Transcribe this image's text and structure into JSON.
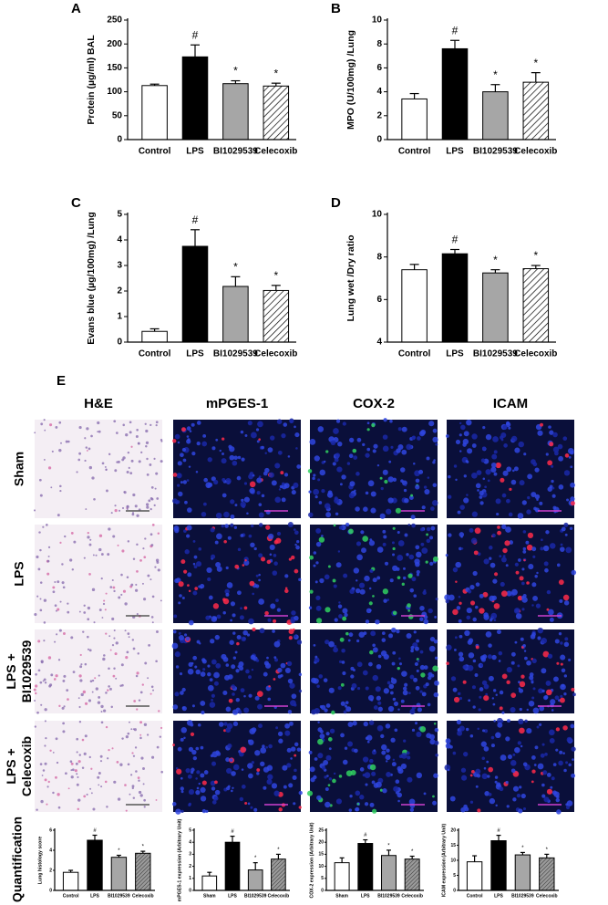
{
  "chart_data": [
    {
      "type": "bar",
      "panel": "A",
      "ylabel": "Protein (µg/ml) BAL",
      "categories": [
        "Control",
        "LPS",
        "BI1029539",
        "Celecoxib"
      ],
      "values": [
        113,
        173,
        117,
        112
      ],
      "errors": [
        3,
        25,
        6,
        6
      ],
      "annotations": [
        null,
        "#",
        "*",
        "*"
      ],
      "colors": [
        "#ffffff",
        "#000000",
        "#a6a6a6",
        "#ffffff"
      ],
      "hatched": [
        false,
        false,
        false,
        true
      ],
      "ylim": [
        0,
        250
      ],
      "yticks": [
        0,
        50,
        100,
        150,
        200,
        250
      ]
    },
    {
      "type": "bar",
      "panel": "B",
      "ylabel": "MPO (U/100mg) /Lung",
      "categories": [
        "Control",
        "LPS",
        "BI1029539",
        "Celecoxib"
      ],
      "values": [
        3.4,
        7.6,
        4.0,
        4.8
      ],
      "errors": [
        0.45,
        0.7,
        0.6,
        0.8
      ],
      "annotations": [
        null,
        "#",
        "*",
        "*"
      ],
      "colors": [
        "#ffffff",
        "#000000",
        "#a6a6a6",
        "#ffffff"
      ],
      "hatched": [
        false,
        false,
        false,
        true
      ],
      "ylim": [
        0,
        10
      ],
      "yticks": [
        0,
        2,
        4,
        6,
        8,
        10
      ]
    },
    {
      "type": "bar",
      "panel": "C",
      "ylabel": "Evans blue (µg/100mg) /Lung",
      "categories": [
        "Control",
        "LPS",
        "BI1029539",
        "Celecoxib"
      ],
      "values": [
        0.42,
        3.75,
        2.18,
        2.02
      ],
      "errors": [
        0.1,
        0.65,
        0.38,
        0.2
      ],
      "annotations": [
        null,
        "#",
        "*",
        "*"
      ],
      "colors": [
        "#ffffff",
        "#000000",
        "#a6a6a6",
        "#ffffff"
      ],
      "hatched": [
        false,
        false,
        false,
        true
      ],
      "ylim": [
        0,
        5
      ],
      "yticks": [
        0,
        1,
        2,
        3,
        4,
        5
      ]
    },
    {
      "type": "bar",
      "panel": "D",
      "ylabel": "Lung wet /Dry ratio",
      "categories": [
        "Control",
        "LPS",
        "BI1029539",
        "Celecoxib"
      ],
      "values": [
        7.4,
        8.15,
        7.25,
        7.45
      ],
      "errors": [
        0.25,
        0.2,
        0.15,
        0.15
      ],
      "annotations": [
        null,
        "#",
        "*",
        "*"
      ],
      "colors": [
        "#ffffff",
        "#000000",
        "#a6a6a6",
        "#ffffff"
      ],
      "hatched": [
        false,
        false,
        false,
        true
      ],
      "ylim": [
        4,
        10
      ],
      "yticks": [
        4,
        6,
        8,
        10
      ]
    },
    {
      "type": "bar",
      "ylabel": "Lung histology score",
      "categories": [
        "Control",
        "LPS",
        "BI1029539",
        "Celecoxib"
      ],
      "values": [
        1.8,
        5.0,
        3.3,
        3.7
      ],
      "errors": [
        0.2,
        0.5,
        0.2,
        0.2
      ],
      "annotations": [
        null,
        "#",
        "*",
        "*"
      ],
      "colors": [
        "#ffffff",
        "#000000",
        "#a6a6a6",
        "#808080"
      ],
      "hatched": [
        false,
        false,
        false,
        true
      ],
      "ylim": [
        0,
        6
      ],
      "yticks": [
        0,
        2,
        4,
        6
      ]
    },
    {
      "type": "bar",
      "ylabel": "mPGES-1 expression (Arbitrary Unit)",
      "categories": [
        "Sham",
        "LPS",
        "BI1029539",
        "Celecoxib"
      ],
      "values": [
        1.2,
        4.0,
        1.7,
        2.6
      ],
      "errors": [
        0.3,
        0.5,
        0.6,
        0.4
      ],
      "annotations": [
        null,
        "#",
        "*",
        "*"
      ],
      "colors": [
        "#ffffff",
        "#000000",
        "#a6a6a6",
        "#808080"
      ],
      "hatched": [
        false,
        false,
        false,
        true
      ],
      "ylim": [
        0,
        5
      ],
      "yticks": [
        0,
        1,
        2,
        3,
        4,
        5
      ]
    },
    {
      "type": "bar",
      "ylabel": "COX-2 expression (Arbitrary Unit)",
      "categories": [
        "Sham",
        "LPS",
        "BI1029539",
        "Celecoxib"
      ],
      "values": [
        11.5,
        19.5,
        14.5,
        13
      ],
      "errors": [
        2,
        1.5,
        2.2,
        1.2
      ],
      "annotations": [
        null,
        "#",
        "*",
        "*"
      ],
      "colors": [
        "#ffffff",
        "#000000",
        "#a6a6a6",
        "#808080"
      ],
      "hatched": [
        false,
        false,
        false,
        true
      ],
      "ylim": [
        0,
        25
      ],
      "yticks": [
        0,
        5,
        10,
        15,
        20,
        25
      ]
    },
    {
      "type": "bar",
      "ylabel": "ICAM expression (Arbitrary Unit)",
      "categories": [
        "Control",
        "LPS",
        "BI1029539",
        "Celecoxib"
      ],
      "values": [
        9.5,
        16.5,
        11.8,
        10.8
      ],
      "errors": [
        2,
        1.8,
        0.8,
        1.2
      ],
      "annotations": [
        null,
        "#",
        "*",
        "*"
      ],
      "colors": [
        "#ffffff",
        "#000000",
        "#a6a6a6",
        "#808080"
      ],
      "hatched": [
        false,
        false,
        false,
        true
      ],
      "ylim": [
        0,
        20
      ],
      "yticks": [
        0,
        5,
        10,
        15,
        20
      ]
    }
  ],
  "panel_e": {
    "panel": "E",
    "columns": [
      "H&E",
      "mPGES-1",
      "COX-2",
      "ICAM"
    ],
    "column_colors": [
      "#000000",
      "#e0202a",
      "#16b050",
      "#e0202a"
    ],
    "rows": [
      [
        "Sham"
      ],
      [
        "LPS"
      ],
      [
        "LPS +",
        "BI1029539"
      ],
      [
        "LPS +",
        "Celecoxib"
      ]
    ],
    "quantification_label": "Quantification"
  }
}
